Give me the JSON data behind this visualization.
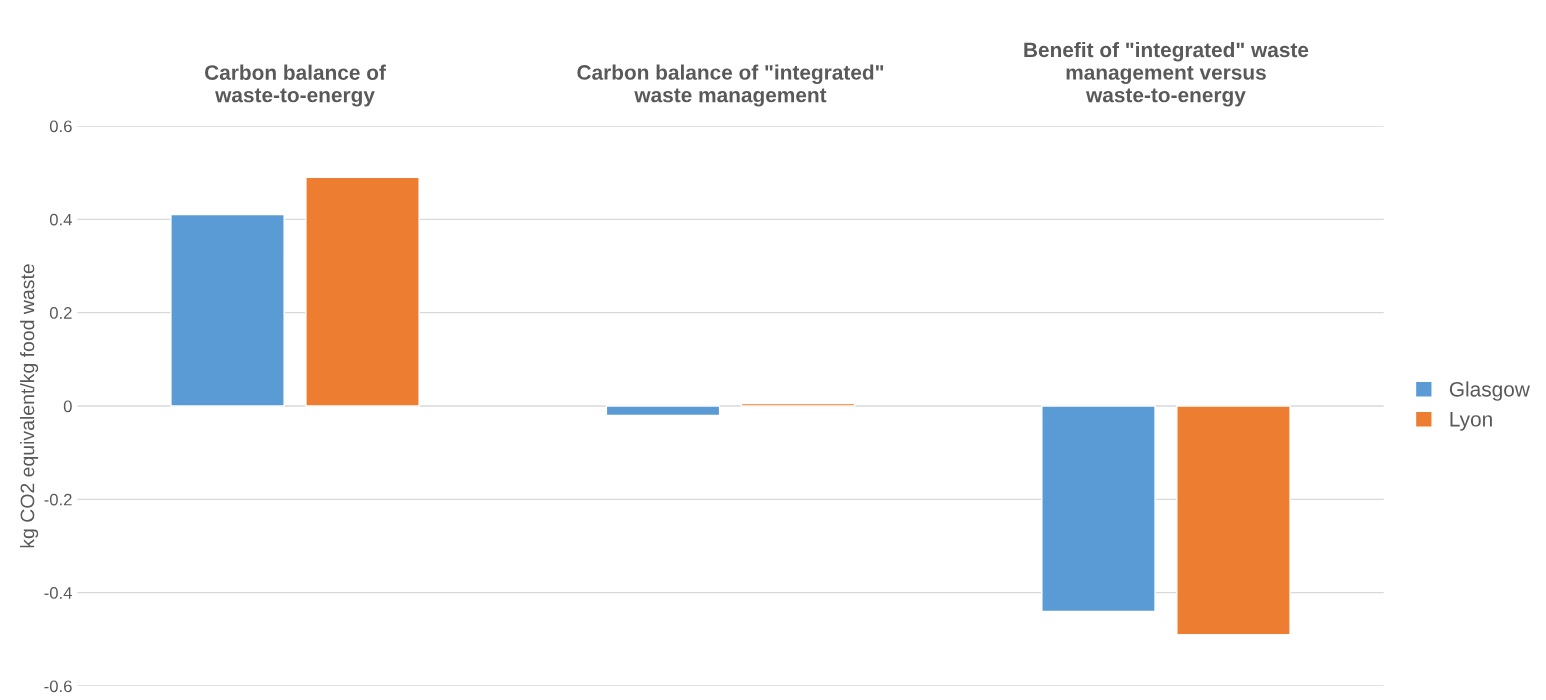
{
  "chart_data": {
    "type": "bar",
    "ylabel": "kg CO2 equivalent/kg food waste",
    "categories": [
      "Carbon balance of waste-to-energy",
      "Carbon balance of \"integrated\" waste management",
      "Benefit of \"integrated\" waste management versus waste-to-energy"
    ],
    "series": [
      {
        "name": "Glasgow",
        "color": "#5b9bd5",
        "values": [
          0.41,
          -0.02,
          -0.44
        ]
      },
      {
        "name": "Lyon",
        "color": "#ed7d31",
        "values": [
          0.49,
          0.005,
          -0.49
        ]
      }
    ],
    "ylim": [
      -0.6,
      0.6
    ],
    "yticks": [
      -0.6,
      -0.4,
      -0.2,
      0,
      0.2,
      0.4,
      0.6
    ],
    "grid": "y",
    "legend": "right"
  }
}
